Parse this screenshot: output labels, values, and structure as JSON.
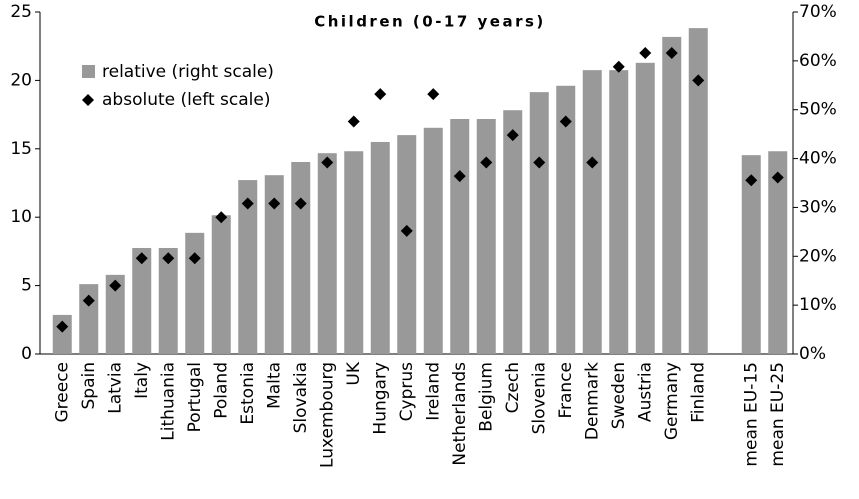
{
  "chart_data": {
    "type": "bar",
    "title": "Children (0-17 years)",
    "categories": [
      "Greece",
      "Spain",
      "Latvia",
      "Italy",
      "Lithuania",
      "Portugal",
      "Poland",
      "Estonia",
      "Malta",
      "Slovakia",
      "Luxembourg",
      "UK",
      "Hungary",
      "Cyprus",
      "Ireland",
      "Netherlands",
      "Belgium",
      "Czech",
      "Slovenia",
      "France",
      "Denmark",
      "Sweden",
      "Austria",
      "Germany",
      "Finland",
      null,
      "mean EU-15",
      "mean EU-25"
    ],
    "series": [
      {
        "name": "relative (right scale)",
        "type": "bar",
        "color": "#999999",
        "axis": "y2",
        "values": [
          8.0,
          14.3,
          16.2,
          21.7,
          21.7,
          24.8,
          28.4,
          35.6,
          36.6,
          39.3,
          41.1,
          41.5,
          43.4,
          44.8,
          46.3,
          48.1,
          48.1,
          49.9,
          53.6,
          54.9,
          58.1,
          58.1,
          59.6,
          64.9,
          66.7,
          null,
          40.7,
          41.5
        ]
      },
      {
        "name": "absolute (left scale)",
        "type": "scatter",
        "color": "#000000",
        "values": [
          2.0,
          3.9,
          5.0,
          7.0,
          7.0,
          7.0,
          10.0,
          11.0,
          11.0,
          11.0,
          14.0,
          17.0,
          19.0,
          9.0,
          19.0,
          13.0,
          14.0,
          16.0,
          14.0,
          17.0,
          14.0,
          21.0,
          22.0,
          22.0,
          20.0,
          null,
          12.7,
          12.9
        ]
      }
    ],
    "ylim": [
      0,
      25
    ],
    "yticks": [
      0,
      5,
      10,
      15,
      20,
      25
    ],
    "y2lim": [
      0,
      70
    ],
    "y2ticks": [
      {
        "value": 0,
        "label": "0%"
      },
      {
        "value": 10,
        "label": "10%"
      },
      {
        "value": 20,
        "label": "20%"
      },
      {
        "value": 30,
        "label": "30%"
      },
      {
        "value": 40,
        "label": "40%"
      },
      {
        "value": 50,
        "label": "50%"
      },
      {
        "value": 60,
        "label": "60%"
      },
      {
        "value": 70,
        "label": "70%"
      }
    ],
    "grid": false,
    "legend": "upper left"
  }
}
